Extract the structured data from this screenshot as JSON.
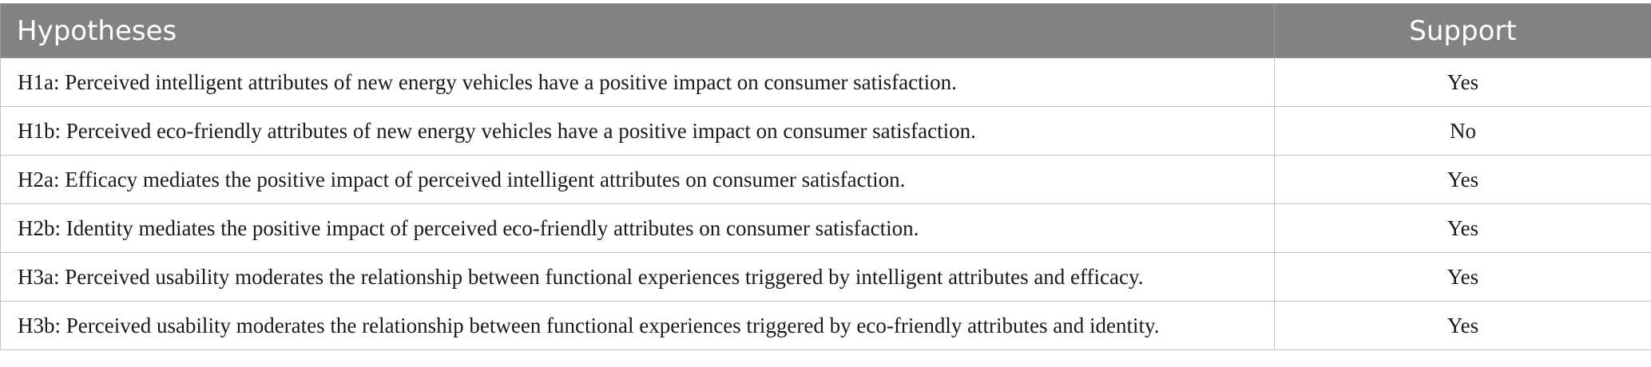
{
  "table": {
    "headers": {
      "hypotheses": "Hypotheses",
      "support": "Support"
    },
    "rows": [
      {
        "hypothesis": "H1a: Perceived intelligent attributes of new energy vehicles have a positive impact on consumer satisfaction.",
        "support": "Yes"
      },
      {
        "hypothesis": "H1b: Perceived eco-friendly attributes of new energy vehicles have a positive impact on consumer satisfaction.",
        "support": "No"
      },
      {
        "hypothesis": "H2a: Efficacy mediates the positive impact of perceived intelligent attributes on consumer satisfaction.",
        "support": "Yes"
      },
      {
        "hypothesis": "H2b: Identity mediates the positive impact of perceived eco-friendly attributes on consumer satisfaction.",
        "support": "Yes"
      },
      {
        "hypothesis": "H3a: Perceived usability moderates the relationship between functional experiences triggered by intelligent attributes and efficacy.",
        "support": "Yes"
      },
      {
        "hypothesis": "H3b: Perceived usability moderates the relationship between functional experiences triggered by eco-friendly attributes and identity.",
        "support": "Yes"
      }
    ]
  },
  "colors": {
    "header_background": "#818281",
    "header_text": "#ffffff",
    "grid_line": "#c3c3c3"
  }
}
